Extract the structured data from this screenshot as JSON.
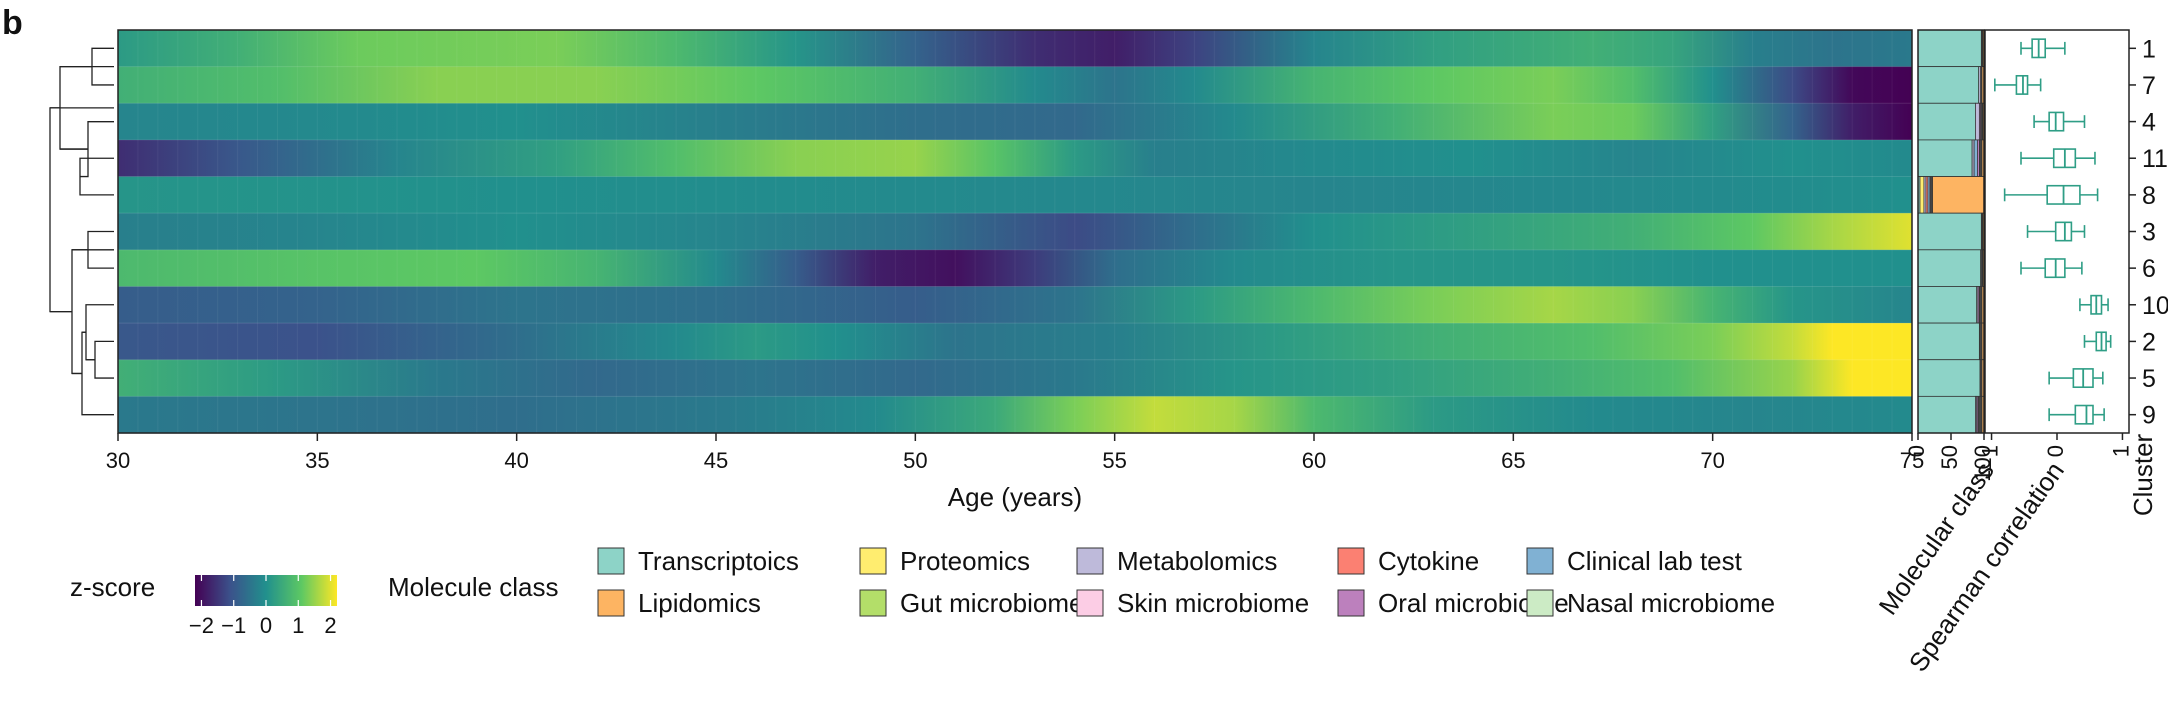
{
  "panel_label": "b",
  "chart_data": {
    "type": "heatmap",
    "title": "",
    "xlabel": "Age (years)",
    "x_range": [
      30,
      75
    ],
    "x_ticks": [
      "30",
      "35",
      "40",
      "45",
      "50",
      "55",
      "60",
      "65",
      "70",
      "75"
    ],
    "clusters": [
      "1",
      "7",
      "4",
      "11",
      "8",
      "3",
      "6",
      "10",
      "2",
      "5",
      "9"
    ],
    "cluster_axis_label": "Cluster",
    "heatmap_profiles": [
      [
        [
          30,
          0.2
        ],
        [
          33,
          0.6
        ],
        [
          36,
          1.2
        ],
        [
          41,
          1.3
        ],
        [
          44,
          0.8
        ],
        [
          47,
          0.1
        ],
        [
          50,
          -0.8
        ],
        [
          53,
          -1.6
        ],
        [
          55,
          -1.8
        ],
        [
          57,
          -1.3
        ],
        [
          60,
          -0.2
        ],
        [
          63,
          0.3
        ],
        [
          67,
          0.6
        ],
        [
          69,
          0.4
        ],
        [
          71,
          -0.3
        ],
        [
          73,
          -0.5
        ],
        [
          75,
          -0.4
        ]
      ],
      [
        [
          30,
          0.6
        ],
        [
          34,
          0.9
        ],
        [
          38,
          1.4
        ],
        [
          42,
          1.4
        ],
        [
          46,
          1.1
        ],
        [
          50,
          0.6
        ],
        [
          53,
          -0.1
        ],
        [
          55,
          -0.5
        ],
        [
          57,
          -0.1
        ],
        [
          60,
          0.7
        ],
        [
          63,
          1.1
        ],
        [
          66,
          1.3
        ],
        [
          68,
          0.9
        ],
        [
          70,
          0.0
        ],
        [
          72,
          -1.2
        ],
        [
          73.5,
          -2.1
        ],
        [
          75,
          -2.2
        ]
      ],
      [
        [
          30,
          -0.2
        ],
        [
          36,
          -0.1
        ],
        [
          40,
          0.0
        ],
        [
          45,
          -0.3
        ],
        [
          50,
          -0.6
        ],
        [
          54,
          -0.7
        ],
        [
          58,
          -0.1
        ],
        [
          62,
          0.6
        ],
        [
          66,
          1.3
        ],
        [
          68,
          1.2
        ],
        [
          70,
          0.3
        ],
        [
          72,
          -0.8
        ],
        [
          73.5,
          -1.8
        ],
        [
          75,
          -2.2
        ]
      ],
      [
        [
          30,
          -1.6
        ],
        [
          33,
          -1.0
        ],
        [
          37,
          -0.2
        ],
        [
          41,
          0.3
        ],
        [
          44,
          0.9
        ],
        [
          47,
          1.4
        ],
        [
          50,
          1.5
        ],
        [
          52,
          1.0
        ],
        [
          54,
          0.2
        ],
        [
          56,
          -0.3
        ],
        [
          60,
          -0.1
        ],
        [
          64,
          0.0
        ],
        [
          68,
          -0.2
        ],
        [
          72,
          0.0
        ],
        [
          75,
          -0.1
        ]
      ],
      [
        [
          30,
          0.1
        ],
        [
          40,
          0.0
        ],
        [
          50,
          -0.1
        ],
        [
          60,
          -0.2
        ],
        [
          70,
          -0.1
        ],
        [
          75,
          0.0
        ]
      ],
      [
        [
          30,
          -0.3
        ],
        [
          35,
          -0.2
        ],
        [
          40,
          0.0
        ],
        [
          45,
          -0.2
        ],
        [
          50,
          -0.5
        ],
        [
          54,
          -1.2
        ],
        [
          57,
          -0.6
        ],
        [
          60,
          0.0
        ],
        [
          64,
          0.3
        ],
        [
          68,
          0.6
        ],
        [
          71,
          1.1
        ],
        [
          73,
          1.6
        ],
        [
          75,
          2.0
        ]
      ],
      [
        [
          30,
          0.8
        ],
        [
          35,
          1.0
        ],
        [
          39,
          1.1
        ],
        [
          42,
          0.7
        ],
        [
          45,
          -0.1
        ],
        [
          47,
          -0.9
        ],
        [
          49,
          -1.8
        ],
        [
          51,
          -2.0
        ],
        [
          53,
          -1.4
        ],
        [
          55,
          -0.6
        ],
        [
          58,
          -0.1
        ],
        [
          62,
          0.1
        ],
        [
          66,
          0.1
        ],
        [
          70,
          0.0
        ],
        [
          75,
          0.0
        ]
      ],
      [
        [
          30,
          -0.9
        ],
        [
          35,
          -0.8
        ],
        [
          40,
          -0.5
        ],
        [
          45,
          -0.6
        ],
        [
          50,
          -0.9
        ],
        [
          54,
          -0.5
        ],
        [
          57,
          0.2
        ],
        [
          60,
          0.8
        ],
        [
          63,
          1.3
        ],
        [
          66,
          1.6
        ],
        [
          68,
          1.4
        ],
        [
          70,
          0.7
        ],
        [
          72,
          0.1
        ],
        [
          75,
          -0.2
        ]
      ],
      [
        [
          30,
          -1.0
        ],
        [
          35,
          -1.1
        ],
        [
          40,
          -0.6
        ],
        [
          44,
          -0.1
        ],
        [
          46,
          0.2
        ],
        [
          48,
          0.0
        ],
        [
          51,
          -0.5
        ],
        [
          55,
          -0.3
        ],
        [
          59,
          0.2
        ],
        [
          63,
          0.6
        ],
        [
          67,
          0.9
        ],
        [
          70,
          1.3
        ],
        [
          72,
          1.8
        ],
        [
          73,
          2.2
        ],
        [
          75,
          2.2
        ]
      ],
      [
        [
          30,
          0.6
        ],
        [
          34,
          0.2
        ],
        [
          38,
          -0.4
        ],
        [
          42,
          -0.7
        ],
        [
          46,
          -0.5
        ],
        [
          50,
          -0.7
        ],
        [
          54,
          -0.4
        ],
        [
          58,
          0.1
        ],
        [
          62,
          0.3
        ],
        [
          66,
          0.6
        ],
        [
          69,
          0.9
        ],
        [
          72,
          1.5
        ],
        [
          73.5,
          2.2
        ],
        [
          75,
          2.2
        ]
      ],
      [
        [
          30,
          -0.4
        ],
        [
          35,
          -0.5
        ],
        [
          40,
          -0.6
        ],
        [
          45,
          -0.4
        ],
        [
          49,
          -0.1
        ],
        [
          52,
          0.5
        ],
        [
          54,
          1.3
        ],
        [
          56,
          1.8
        ],
        [
          58,
          1.6
        ],
        [
          60,
          0.8
        ],
        [
          63,
          0.2
        ],
        [
          67,
          -0.1
        ],
        [
          71,
          -0.2
        ],
        [
          75,
          -0.1
        ]
      ]
    ],
    "colorbar": {
      "title": "z-score",
      "range": [
        -2.2,
        2.2
      ],
      "ticks": [
        "−2",
        "−1",
        "0",
        "1",
        "2"
      ],
      "tick_values": [
        -2,
        -1,
        0,
        1,
        2
      ],
      "stops": [
        "#440154",
        "#3b528b",
        "#21908d",
        "#5dc863",
        "#fde725"
      ]
    },
    "molecular_class": {
      "axis_label": "Molecular class",
      "ticks": [
        "0",
        "50",
        "100"
      ],
      "tick_values": [
        0,
        50,
        100
      ],
      "rows": [
        [
          96,
          0,
          0,
          0,
          0,
          0,
          0,
          0,
          0,
          2,
          2
        ],
        [
          92,
          0,
          3,
          0,
          0,
          0,
          0,
          0,
          0,
          2,
          3
        ],
        [
          87,
          0,
          6,
          0,
          0,
          0,
          0,
          0,
          2,
          3,
          2
        ],
        [
          82,
          0,
          3,
          0,
          5,
          0,
          0,
          0,
          3,
          4,
          3
        ],
        [
          3,
          6,
          3,
          3,
          3,
          0,
          0,
          0,
          0,
          4,
          78
        ],
        [
          96,
          0,
          0,
          0,
          0,
          0,
          0,
          0,
          0,
          2,
          2
        ],
        [
          95,
          0,
          0,
          0,
          0,
          0,
          0,
          0,
          0,
          3,
          2
        ],
        [
          89,
          0,
          2,
          0,
          0,
          0,
          0,
          0,
          2,
          4,
          3
        ],
        [
          93,
          0,
          0,
          0,
          0,
          0,
          0,
          0,
          0,
          4,
          3
        ],
        [
          94,
          0,
          0,
          0,
          0,
          0,
          0,
          0,
          0,
          3,
          3
        ],
        [
          87,
          0,
          2,
          0,
          0,
          0,
          0,
          0,
          2,
          6,
          3
        ]
      ],
      "segment_order": [
        "Transcriptoics",
        "Proteomics",
        "Metabolomics",
        "Cytokine",
        "Clinical lab test",
        "Gut microbiome",
        "Skin microbiome",
        "Nasal microbiome",
        "Oral microbiome",
        "_dark",
        "Lipidomics"
      ],
      "segment_colors": [
        "#8dd3c7",
        "#ffed6f",
        "#bebada",
        "#fb8072",
        "#80b1d3",
        "#b3de69",
        "#fccde5",
        "#ccebc5",
        "#bc80bd",
        "#444444",
        "#fdb462"
      ]
    },
    "spearman": {
      "axis_label": "Spearman correlation",
      "range": [
        -1.1,
        1.1
      ],
      "ticks": [
        "−1",
        "0",
        "1"
      ],
      "tick_values": [
        -1,
        0,
        1
      ],
      "box_color": "#2f9e86",
      "boxes": [
        {
          "min": -0.55,
          "q1": -0.38,
          "median": -0.28,
          "q3": -0.18,
          "max": 0.12
        },
        {
          "min": -0.95,
          "q1": -0.62,
          "median": -0.52,
          "q3": -0.45,
          "max": -0.25
        },
        {
          "min": -0.35,
          "q1": -0.12,
          "median": -0.02,
          "q3": 0.1,
          "max": 0.42
        },
        {
          "min": -0.55,
          "q1": -0.05,
          "median": 0.12,
          "q3": 0.28,
          "max": 0.58
        },
        {
          "min": -0.8,
          "q1": -0.15,
          "median": 0.1,
          "q3": 0.35,
          "max": 0.62
        },
        {
          "min": -0.45,
          "q1": -0.02,
          "median": 0.12,
          "q3": 0.22,
          "max": 0.42
        },
        {
          "min": -0.55,
          "q1": -0.18,
          "median": -0.02,
          "q3": 0.12,
          "max": 0.38
        },
        {
          "min": 0.35,
          "q1": 0.52,
          "median": 0.6,
          "q3": 0.68,
          "max": 0.78
        },
        {
          "min": 0.42,
          "q1": 0.6,
          "median": 0.68,
          "q3": 0.75,
          "max": 0.82
        },
        {
          "min": -0.12,
          "q1": 0.25,
          "median": 0.4,
          "q3": 0.55,
          "max": 0.7
        },
        {
          "min": -0.12,
          "q1": 0.28,
          "median": 0.45,
          "q3": 0.55,
          "max": 0.72
        }
      ]
    },
    "legend": {
      "title": "Molecule class",
      "items": [
        {
          "label": "Transcriptoics",
          "color": "#8dd3c7"
        },
        {
          "label": "Proteomics",
          "color": "#ffed6f"
        },
        {
          "label": "Metabolomics",
          "color": "#bebada"
        },
        {
          "label": "Cytokine",
          "color": "#fb8072"
        },
        {
          "label": "Clinical lab test",
          "color": "#80b1d3"
        },
        {
          "label": "Lipidomics",
          "color": "#fdb462"
        },
        {
          "label": "Gut microbiome",
          "color": "#b3de69"
        },
        {
          "label": "Skin microbiome",
          "color": "#fccde5"
        },
        {
          "label": "Oral microbiome",
          "color": "#bc80bd"
        },
        {
          "label": "Nasal microbiome",
          "color": "#ccebc5"
        }
      ]
    }
  }
}
